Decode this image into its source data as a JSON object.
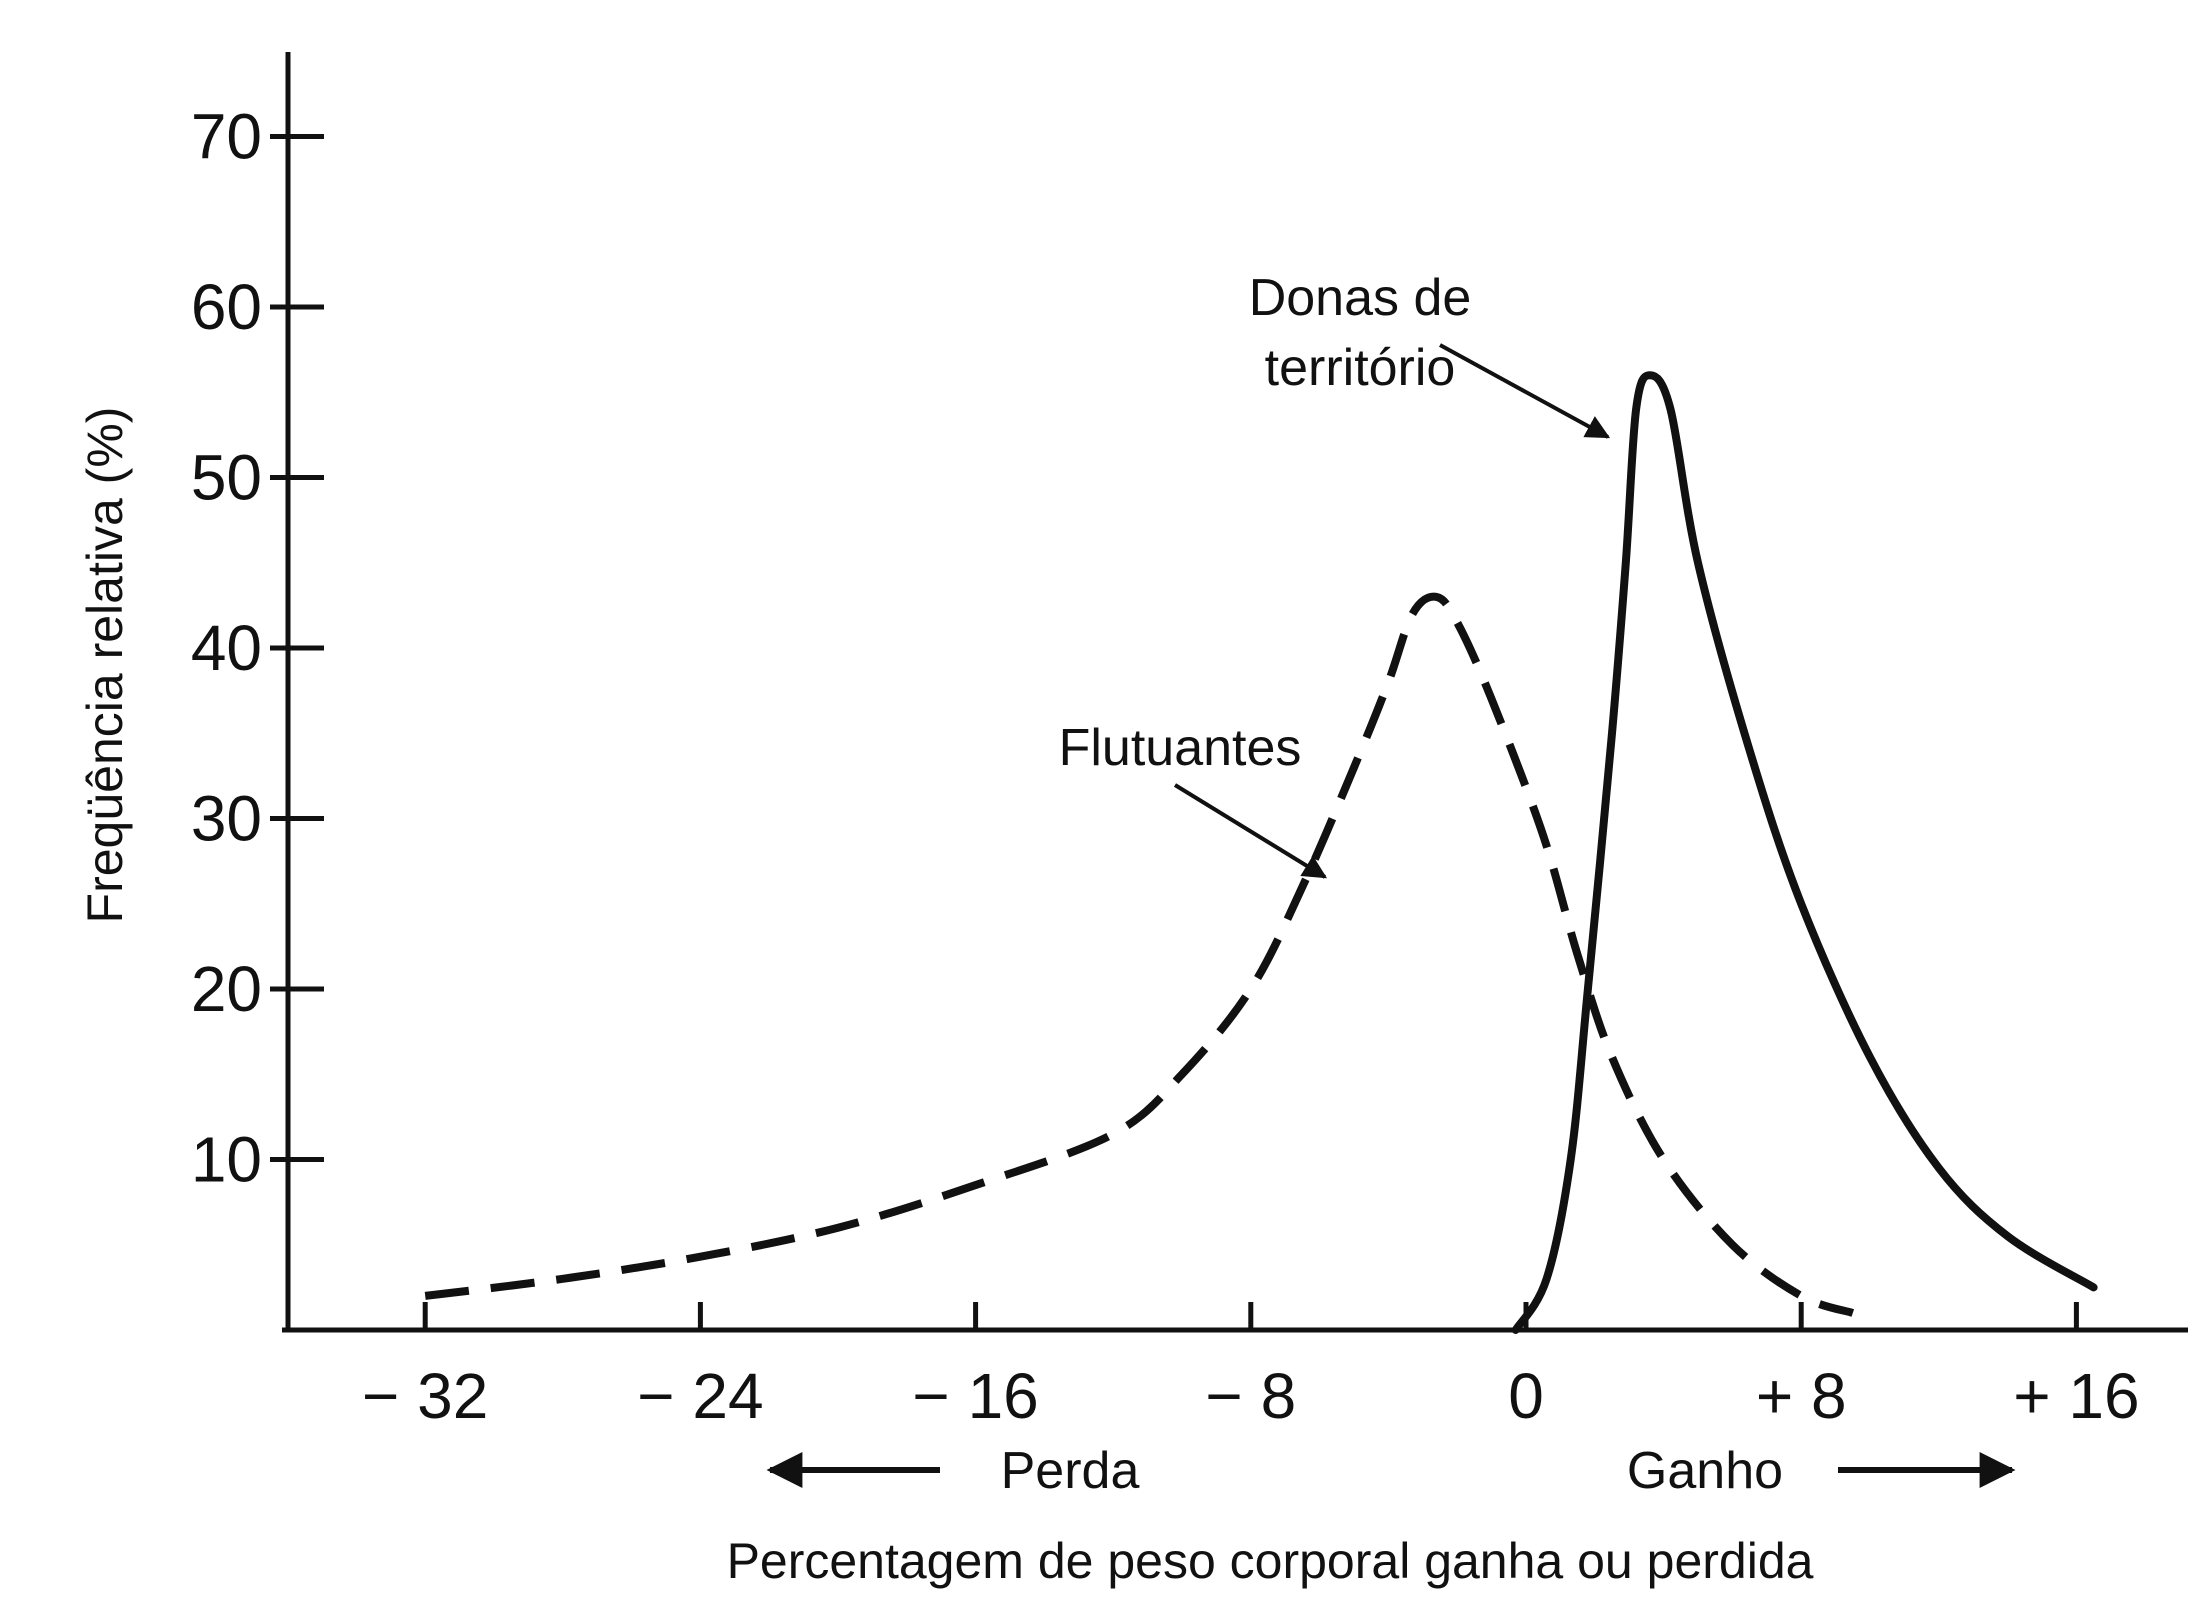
{
  "chart_data": {
    "type": "line",
    "title": "",
    "xlabel": "Percentagem de peso corporal ganha ou perdida",
    "ylabel": "Freqüência relativa (%)",
    "xlim": [
      -37,
      19.5
    ],
    "ylim": [
      0,
      74
    ],
    "x_ticks": [
      -32,
      -24,
      -16,
      -8,
      0,
      8,
      16
    ],
    "x_tick_labels": [
      "− 32",
      "− 24",
      "− 16",
      "− 8",
      "0",
      "+ 8",
      "+ 16"
    ],
    "y_ticks": [
      10,
      20,
      30,
      40,
      50,
      60,
      70
    ],
    "y_tick_labels": [
      "10",
      "20",
      "30",
      "40",
      "50",
      "60",
      "70"
    ],
    "grid": false,
    "direction_labels": {
      "loss": "Perda",
      "gain": "Ganho"
    },
    "series": [
      {
        "name": "Flutuantes",
        "style": "dashed",
        "points": [
          [
            -32,
            2
          ],
          [
            -28,
            3
          ],
          [
            -24,
            4.3
          ],
          [
            -20,
            6
          ],
          [
            -16,
            8.5
          ],
          [
            -12,
            11.5
          ],
          [
            -10,
            15
          ],
          [
            -8,
            20
          ],
          [
            -6.5,
            26
          ],
          [
            -5,
            33
          ],
          [
            -4,
            38
          ],
          [
            -3.3,
            42
          ],
          [
            -2.6,
            43
          ],
          [
            -2,
            41.5
          ],
          [
            -1,
            37
          ],
          [
            0.5,
            29
          ],
          [
            1.5,
            22
          ],
          [
            2.5,
            16
          ],
          [
            4,
            10
          ],
          [
            6,
            5
          ],
          [
            8,
            2
          ],
          [
            9.5,
            1
          ]
        ]
      },
      {
        "name": "Donas de território",
        "label_lines": [
          "Donas de",
          "território"
        ],
        "style": "solid",
        "points": [
          [
            -0.3,
            0
          ],
          [
            0.6,
            3
          ],
          [
            1.3,
            10
          ],
          [
            1.8,
            20
          ],
          [
            2.5,
            35
          ],
          [
            2.9,
            45
          ],
          [
            3.2,
            54
          ],
          [
            3.6,
            56
          ],
          [
            4.2,
            54
          ],
          [
            5,
            45
          ],
          [
            6.5,
            34
          ],
          [
            8,
            25
          ],
          [
            10,
            16
          ],
          [
            12,
            9.5
          ],
          [
            14,
            5.5
          ],
          [
            16.5,
            2.5
          ]
        ]
      }
    ]
  }
}
